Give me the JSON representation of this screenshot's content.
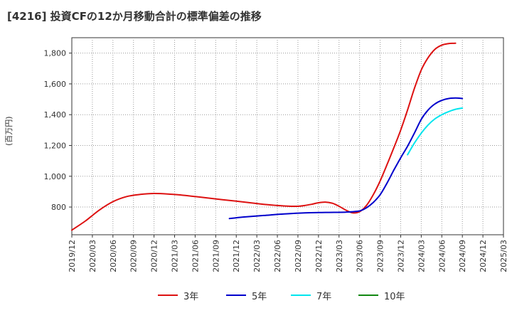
{
  "chart_data": {
    "type": "line",
    "title": "[4216]  投資CFの12か月移動合計の標準偏差の推移",
    "ylabel": "(百万円)",
    "ylim": [
      620,
      1900
    ],
    "yticks": [
      800,
      1000,
      1200,
      1400,
      1600,
      1800
    ],
    "ytick_labels": [
      "800",
      "1,000",
      "1,200",
      "1,400",
      "1,600",
      "1,800"
    ],
    "x_start": "2019/12",
    "xtick_labels": [
      "2019/12",
      "2020/03",
      "2020/06",
      "2020/09",
      "2020/12",
      "2021/03",
      "2021/06",
      "2021/09",
      "2021/12",
      "2022/03",
      "2022/06",
      "2022/09",
      "2022/12",
      "2023/03",
      "2023/06",
      "2023/09",
      "2023/12",
      "2024/03",
      "2024/06",
      "2024/09",
      "2024/12",
      "2025/03"
    ],
    "grid": true,
    "legend_position": "bottom",
    "series": [
      {
        "name": "3年",
        "color": "#dd1111",
        "points": [
          [
            "2019/12",
            650
          ],
          [
            "2020/02",
            710
          ],
          [
            "2020/04",
            780
          ],
          [
            "2020/06",
            835
          ],
          [
            "2020/08",
            868
          ],
          [
            "2020/10",
            882
          ],
          [
            "2020/12",
            888
          ],
          [
            "2021/02",
            885
          ],
          [
            "2021/04",
            878
          ],
          [
            "2021/06",
            868
          ],
          [
            "2021/08",
            858
          ],
          [
            "2021/10",
            848
          ],
          [
            "2021/12",
            838
          ],
          [
            "2022/02",
            828
          ],
          [
            "2022/04",
            818
          ],
          [
            "2022/06",
            810
          ],
          [
            "2022/08",
            805
          ],
          [
            "2022/09",
            805
          ],
          [
            "2022/10",
            810
          ],
          [
            "2022/11",
            818
          ],
          [
            "2022/12",
            828
          ],
          [
            "2023/01",
            832
          ],
          [
            "2023/02",
            825
          ],
          [
            "2023/03",
            805
          ],
          [
            "2023/04",
            780
          ],
          [
            "2023/05",
            762
          ],
          [
            "2023/06",
            770
          ],
          [
            "2023/07",
            810
          ],
          [
            "2023/08",
            880
          ],
          [
            "2023/09",
            970
          ],
          [
            "2023/10",
            1075
          ],
          [
            "2023/11",
            1185
          ],
          [
            "2023/12",
            1300
          ],
          [
            "2024/01",
            1430
          ],
          [
            "2024/02",
            1570
          ],
          [
            "2024/03",
            1690
          ],
          [
            "2024/04",
            1770
          ],
          [
            "2024/05",
            1825
          ],
          [
            "2024/06",
            1852
          ],
          [
            "2024/07",
            1862
          ],
          [
            "2024/08",
            1864
          ]
        ]
      },
      {
        "name": "5年",
        "color": "#0000cc",
        "points": [
          [
            "2021/11",
            725
          ],
          [
            "2022/01",
            735
          ],
          [
            "2022/04",
            745
          ],
          [
            "2022/07",
            755
          ],
          [
            "2022/10",
            762
          ],
          [
            "2023/01",
            765
          ],
          [
            "2023/04",
            767
          ],
          [
            "2023/06",
            775
          ],
          [
            "2023/07",
            795
          ],
          [
            "2023/08",
            830
          ],
          [
            "2023/09",
            880
          ],
          [
            "2023/10",
            955
          ],
          [
            "2023/11",
            1040
          ],
          [
            "2023/12",
            1120
          ],
          [
            "2024/01",
            1195
          ],
          [
            "2024/02",
            1280
          ],
          [
            "2024/03",
            1370
          ],
          [
            "2024/04",
            1430
          ],
          [
            "2024/05",
            1470
          ],
          [
            "2024/06",
            1493
          ],
          [
            "2024/07",
            1505
          ],
          [
            "2024/08",
            1508
          ],
          [
            "2024/09",
            1505
          ]
        ]
      },
      {
        "name": "7年",
        "color": "#00e5ee",
        "points": [
          [
            "2024/01",
            1140
          ],
          [
            "2024/02",
            1215
          ],
          [
            "2024/03",
            1280
          ],
          [
            "2024/04",
            1333
          ],
          [
            "2024/05",
            1373
          ],
          [
            "2024/06",
            1400
          ],
          [
            "2024/07",
            1420
          ],
          [
            "2024/08",
            1435
          ],
          [
            "2024/09",
            1443
          ]
        ]
      },
      {
        "name": "10年",
        "color": "#118811",
        "points": []
      }
    ]
  }
}
